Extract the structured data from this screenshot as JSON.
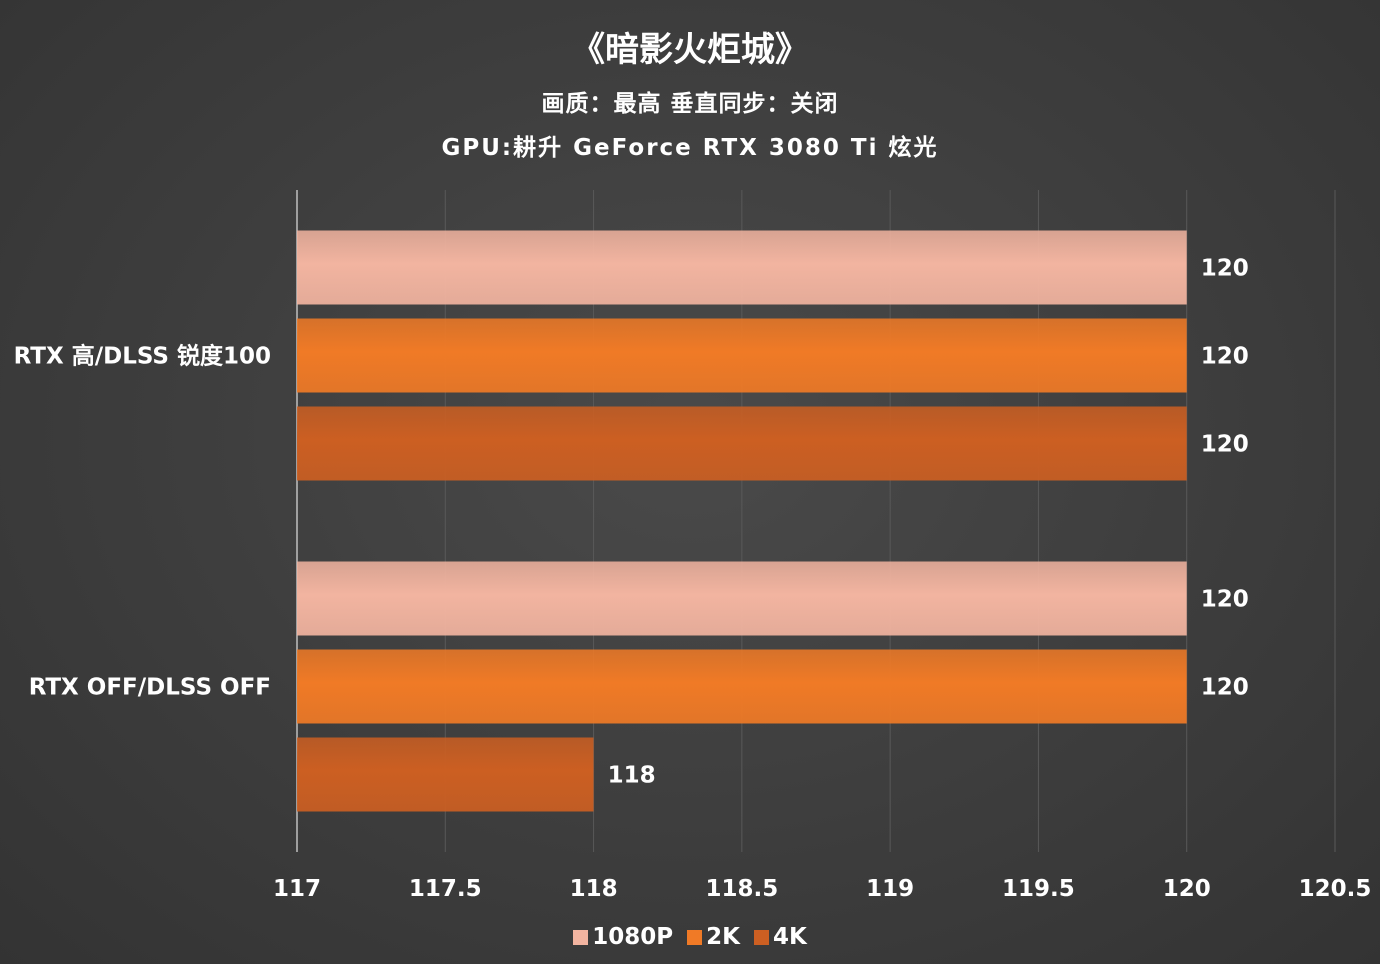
{
  "chart_data": {
    "type": "bar",
    "orientation": "horizontal",
    "title": "《暗影火炬城》",
    "subtitle_lines": [
      "画质：最高    垂直同步：关闭",
      "GPU:耕升 GeForce RTX 3080 Ti 炫光"
    ],
    "categories": [
      "RTX 高/DLSS 锐度100",
      "RTX OFF/DLSS OFF"
    ],
    "series": [
      {
        "name": "1080P",
        "color": "#f2b4a0",
        "values": [
          120,
          120
        ]
      },
      {
        "name": "2K",
        "color": "#f07a26",
        "values": [
          120,
          120
        ]
      },
      {
        "name": "4K",
        "color": "#cc5f22",
        "values": [
          120,
          118
        ]
      }
    ],
    "xlim": [
      117,
      120.5
    ],
    "xticks": [
      "117",
      "117.5",
      "118",
      "118.5",
      "119",
      "119.5",
      "120",
      "120.5"
    ],
    "grid": true,
    "legend_position": "bottom"
  }
}
